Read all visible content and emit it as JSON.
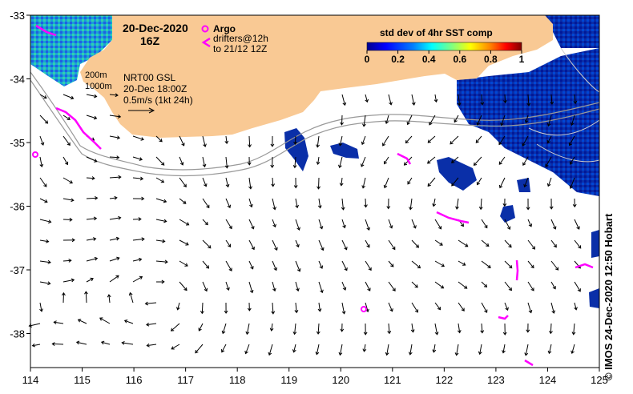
{
  "map": {
    "title_date": "20-Dec-2020",
    "title_time": "16Z",
    "legend": {
      "argo_label": "Argo",
      "argo_color": "#ff00ff",
      "drifters_line1": "drifters@12h",
      "drifters_line2": "to 21/12 12Z",
      "drifter_color": "#ff00ff"
    },
    "isobaths": {
      "label_1": "200m",
      "label_2": "1000m",
      "color": "#999999"
    },
    "currents": {
      "model_label": "NRT00 GSL",
      "model_time": "20-Dec 18:00Z",
      "scale_label": "0.5m/s (1kt 24h)"
    },
    "colorbar": {
      "title": "std dev of 4hr SST comp",
      "ticks": [
        "0",
        "0.2",
        "0.4",
        "0.6",
        "0.8",
        "1"
      ],
      "colors": [
        "#00008f",
        "#0000ff",
        "#0080ff",
        "#00ffff",
        "#80ff80",
        "#ffff00",
        "#ff8000",
        "#ff0000",
        "#800000"
      ]
    },
    "land_color": "#f9c994",
    "x_ticks": [
      "114",
      "115",
      "116",
      "117",
      "118",
      "119",
      "120",
      "121",
      "122",
      "123",
      "124",
      "125"
    ],
    "y_ticks": [
      "-33",
      "-34",
      "-35",
      "-36",
      "-37",
      "-38"
    ],
    "credit": "© IMOS 24-Dec-2020 12:50 Hobart"
  }
}
